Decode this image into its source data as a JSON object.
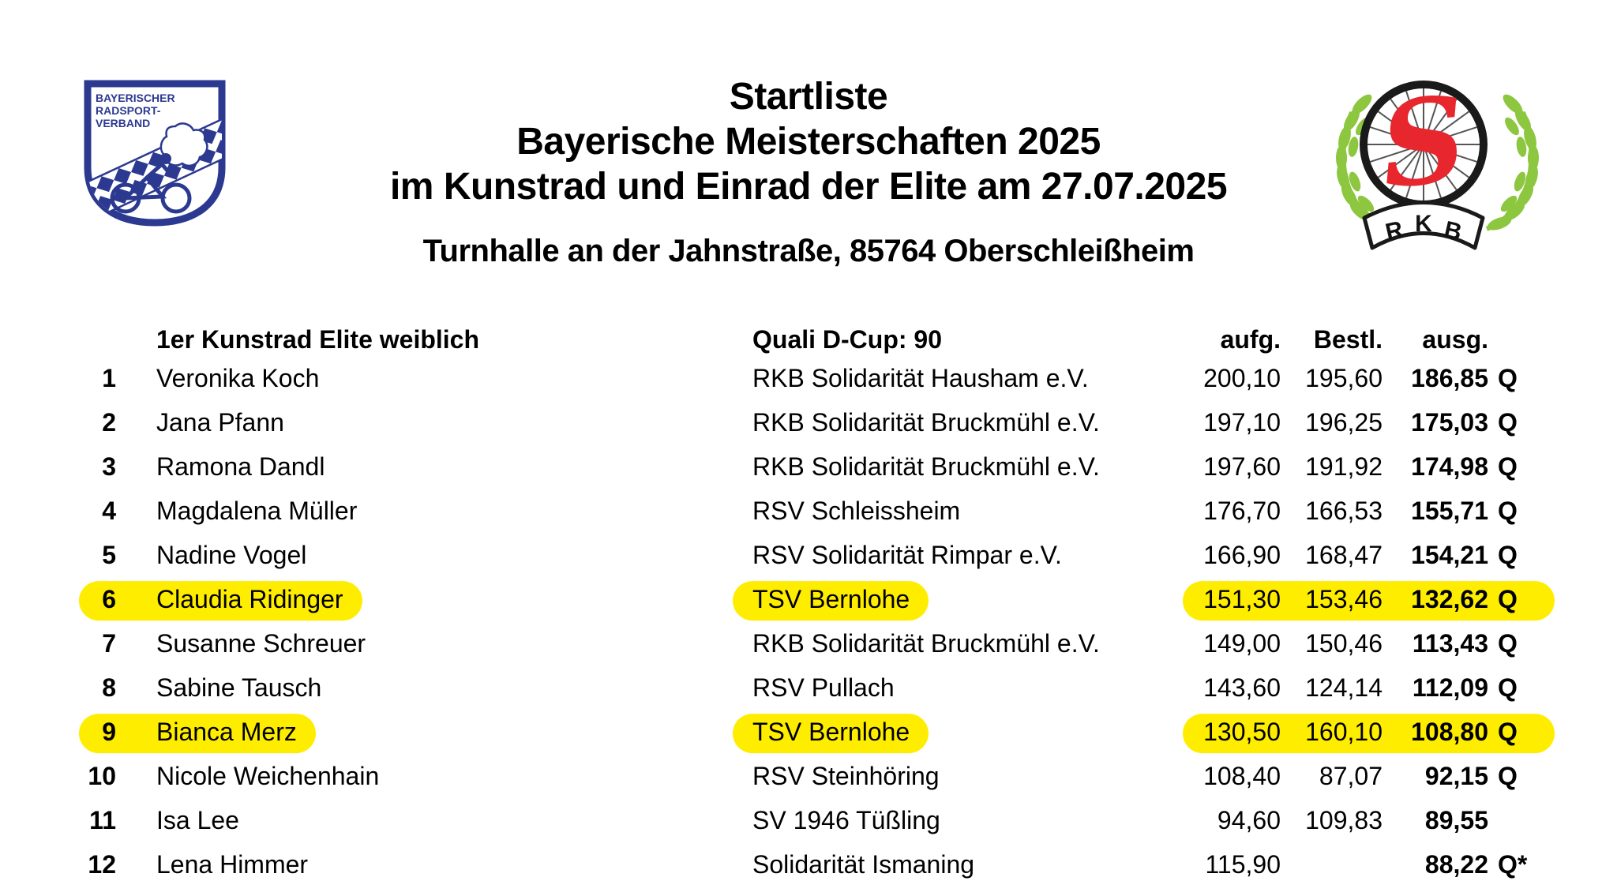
{
  "page": {
    "background": "#ffffff",
    "text_color": "#000000"
  },
  "header": {
    "title_lines": [
      "Startliste",
      "Bayerische Meisterschaften 2025",
      "im Kunstrad und Einrad der Elite am 27.07.2025"
    ],
    "venue": "Turnhalle an der Jahnstraße, 85764 Oberschleißheim"
  },
  "logos": {
    "left": {
      "name": "Bayerischer Radsport-Verband shield",
      "text_lines": [
        "BAYERISCHER",
        "RADSPORT-",
        "VERBAND"
      ],
      "color": "#2b3990"
    },
    "right": {
      "name": "RKB Solidarität wheel emblem",
      "letter": "S",
      "banner_letters": [
        "R",
        "K",
        "B"
      ],
      "s_color": "#e8262d",
      "laurel_color": "#8dc63f",
      "wheel_color": "#1a1a1a"
    }
  },
  "table": {
    "section_title": "1er Kunstrad Elite weiblich",
    "quali_label": "Quali D-Cup: 90",
    "columns": {
      "aufg": "aufg.",
      "bestl": "Bestl.",
      "ausg": "ausg."
    },
    "highlight_color": "#ffed00",
    "rows": [
      {
        "rank": "1",
        "name": "Veronika Koch",
        "club": "RKB Solidarität Hausham e.V.",
        "aufg": "200,10",
        "bestl": "195,60",
        "ausg": "186,85",
        "q": "Q",
        "highlighted": false
      },
      {
        "rank": "2",
        "name": "Jana Pfann",
        "club": "RKB Solidarität Bruckmühl e.V.",
        "aufg": "197,10",
        "bestl": "196,25",
        "ausg": "175,03",
        "q": "Q",
        "highlighted": false
      },
      {
        "rank": "3",
        "name": "Ramona Dandl",
        "club": "RKB Solidarität Bruckmühl e.V.",
        "aufg": "197,60",
        "bestl": "191,92",
        "ausg": "174,98",
        "q": "Q",
        "highlighted": false
      },
      {
        "rank": "4",
        "name": "Magdalena Müller",
        "club": "RSV Schleissheim",
        "aufg": "176,70",
        "bestl": "166,53",
        "ausg": "155,71",
        "q": "Q",
        "highlighted": false
      },
      {
        "rank": "5",
        "name": "Nadine Vogel",
        "club": "RSV Solidarität Rimpar e.V.",
        "aufg": "166,90",
        "bestl": "168,47",
        "ausg": "154,21",
        "q": "Q",
        "highlighted": false
      },
      {
        "rank": "6",
        "name": "Claudia Ridinger",
        "club": "TSV Bernlohe",
        "aufg": "151,30",
        "bestl": "153,46",
        "ausg": "132,62",
        "q": "Q",
        "highlighted": true
      },
      {
        "rank": "7",
        "name": "Susanne Schreuer",
        "club": "RKB Solidarität Bruckmühl e.V.",
        "aufg": "149,00",
        "bestl": "150,46",
        "ausg": "113,43",
        "q": "Q",
        "highlighted": false
      },
      {
        "rank": "8",
        "name": "Sabine Tausch",
        "club": "RSV Pullach",
        "aufg": "143,60",
        "bestl": "124,14",
        "ausg": "112,09",
        "q": "Q",
        "highlighted": false
      },
      {
        "rank": "9",
        "name": "Bianca Merz",
        "club": "TSV Bernlohe",
        "aufg": "130,50",
        "bestl": "160,10",
        "ausg": "108,80",
        "q": "Q",
        "highlighted": true
      },
      {
        "rank": "10",
        "name": "Nicole Weichenhain",
        "club": "RSV Steinhöring",
        "aufg": "108,40",
        "bestl": "87,07",
        "ausg": "92,15",
        "q": "Q",
        "highlighted": false
      },
      {
        "rank": "11",
        "name": "Isa Lee",
        "club": "SV 1946 Tüßling",
        "aufg": "94,60",
        "bestl": "109,83",
        "ausg": "89,55",
        "q": "",
        "highlighted": false
      },
      {
        "rank": "12",
        "name": "Lena Himmer",
        "club": "Solidarität Ismaning",
        "aufg": "115,90",
        "bestl": "",
        "ausg": "88,22",
        "q": "Q*",
        "highlighted": false
      }
    ]
  }
}
